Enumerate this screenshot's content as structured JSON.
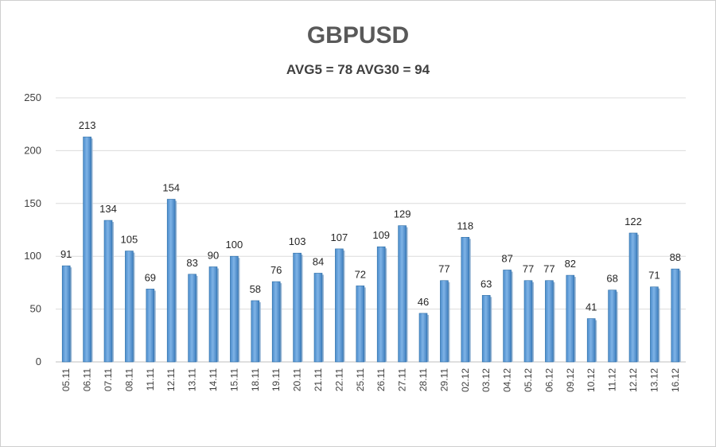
{
  "chart_data": {
    "type": "bar",
    "title": "GBPUSD",
    "subtitle": "AVG5 = 78 AVG30 = 94",
    "xlabel": "",
    "ylabel": "",
    "ylim": [
      0,
      250
    ],
    "yticks": [
      0,
      50,
      100,
      150,
      200,
      250
    ],
    "grid": true,
    "legend": "none",
    "categories": [
      "05.11",
      "06.11",
      "07.11",
      "08.11",
      "11.11",
      "12.11",
      "13.11",
      "14.11",
      "15.11",
      "18.11",
      "19.11",
      "20.11",
      "21.11",
      "22.11",
      "25.11",
      "26.11",
      "27.11",
      "28.11",
      "29.11",
      "02.12",
      "03.12",
      "04.12",
      "05.12",
      "06.12",
      "09.12",
      "10.12",
      "11.12",
      "12.12",
      "13.12",
      "16.12"
    ],
    "values": [
      91,
      213,
      134,
      105,
      69,
      154,
      83,
      90,
      100,
      58,
      76,
      103,
      84,
      107,
      72,
      109,
      129,
      46,
      77,
      118,
      63,
      87,
      77,
      77,
      82,
      41,
      68,
      122,
      71,
      88
    ],
    "bar_color": "#5b9bd5",
    "bar_dark_color": "#2e6ea6"
  }
}
